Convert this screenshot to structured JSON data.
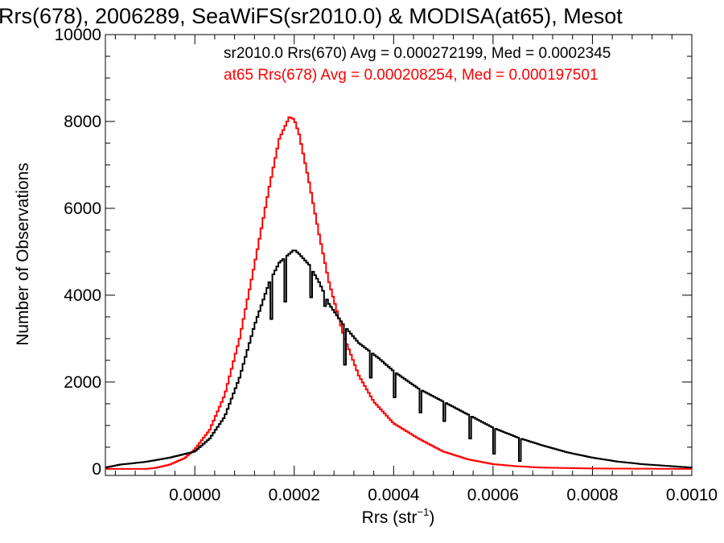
{
  "chart_data": {
    "type": "line",
    "title": "Rrs(678), 2006289, SeaWiFS(sr2010.0) & MODISA(at65), Mesot",
    "xlabel": "Rrs (str",
    "xlabel_sup": "−1",
    "xlabel_close": ")",
    "ylabel": "Number of Observations",
    "xlim": [
      -0.00018,
      0.001
    ],
    "ylim": [
      -150,
      10000
    ],
    "x_ticks": [
      0.0,
      0.0002,
      0.0004,
      0.0006,
      0.0008,
      0.001
    ],
    "x_tick_labels": [
      "0.0000",
      "0.0002",
      "0.0004",
      "0.0006",
      "0.0008",
      "0.0010"
    ],
    "y_ticks": [
      0,
      2000,
      4000,
      6000,
      8000,
      10000
    ],
    "y_tick_labels": [
      "0",
      "2000",
      "4000",
      "6000",
      "8000",
      "10000"
    ],
    "grid": false,
    "legend_position": "top-right",
    "series": [
      {
        "name": "sr2010.0 Rrs(670) Avg = 0.000272199, Med = 0.0002345",
        "color": "#000000",
        "step": "histogram",
        "x": [
          -0.00018,
          -0.00015,
          -0.0001,
          -5e-05,
          0.0,
          3e-05,
          6e-05,
          9e-05,
          0.00012,
          0.00015,
          0.00017,
          0.00019,
          0.0002,
          0.00021,
          0.00023,
          0.00025,
          0.00027,
          0.0003,
          0.00033,
          0.00037,
          0.0004,
          0.00045,
          0.0005,
          0.00055,
          0.0006,
          0.00065,
          0.0007,
          0.00075,
          0.0008,
          0.00085,
          0.0009,
          0.00095,
          0.001
        ],
        "y": [
          30,
          100,
          160,
          260,
          400,
          700,
          1200,
          2100,
          3300,
          4300,
          4750,
          4950,
          5050,
          4950,
          4700,
          4300,
          3800,
          3300,
          2900,
          2550,
          2250,
          1850,
          1550,
          1250,
          950,
          720,
          540,
          380,
          260,
          170,
          110,
          70,
          30
        ],
        "dips": [
          [
            0.00015,
            3450
          ],
          [
            0.00018,
            3850
          ],
          [
            0.00023,
            3950
          ],
          [
            0.00026,
            3750
          ],
          [
            0.0003,
            2400
          ],
          [
            0.00035,
            2100
          ],
          [
            0.0004,
            1650
          ],
          [
            0.00045,
            1300
          ],
          [
            0.0005,
            1100
          ],
          [
            0.00055,
            700
          ],
          [
            0.0006,
            350
          ],
          [
            0.00065,
            180
          ]
        ]
      },
      {
        "name": "at65 Rrs(678) Avg = 0.000208254, Med = 0.000197501",
        "color": "#ff0000",
        "step": "histogram",
        "x": [
          -0.00018,
          -0.0001,
          -8e-05,
          -5e-05,
          -2e-05,
          0.0,
          3e-05,
          6e-05,
          9e-05,
          0.00012,
          0.00015,
          0.00017,
          0.00019,
          0.0002,
          0.00021,
          0.00023,
          0.00025,
          0.00027,
          0.0003,
          0.00033,
          0.00036,
          0.0004,
          0.00045,
          0.0005,
          0.00055,
          0.0006,
          0.00065,
          0.0007,
          0.0008,
          0.0009,
          0.001
        ],
        "y": [
          0,
          0,
          20,
          100,
          250,
          450,
          900,
          1700,
          3000,
          4700,
          6500,
          7600,
          8100,
          8050,
          7700,
          6600,
          5400,
          4300,
          3050,
          2150,
          1550,
          1050,
          700,
          400,
          220,
          110,
          60,
          30,
          10,
          5,
          0
        ]
      }
    ]
  }
}
